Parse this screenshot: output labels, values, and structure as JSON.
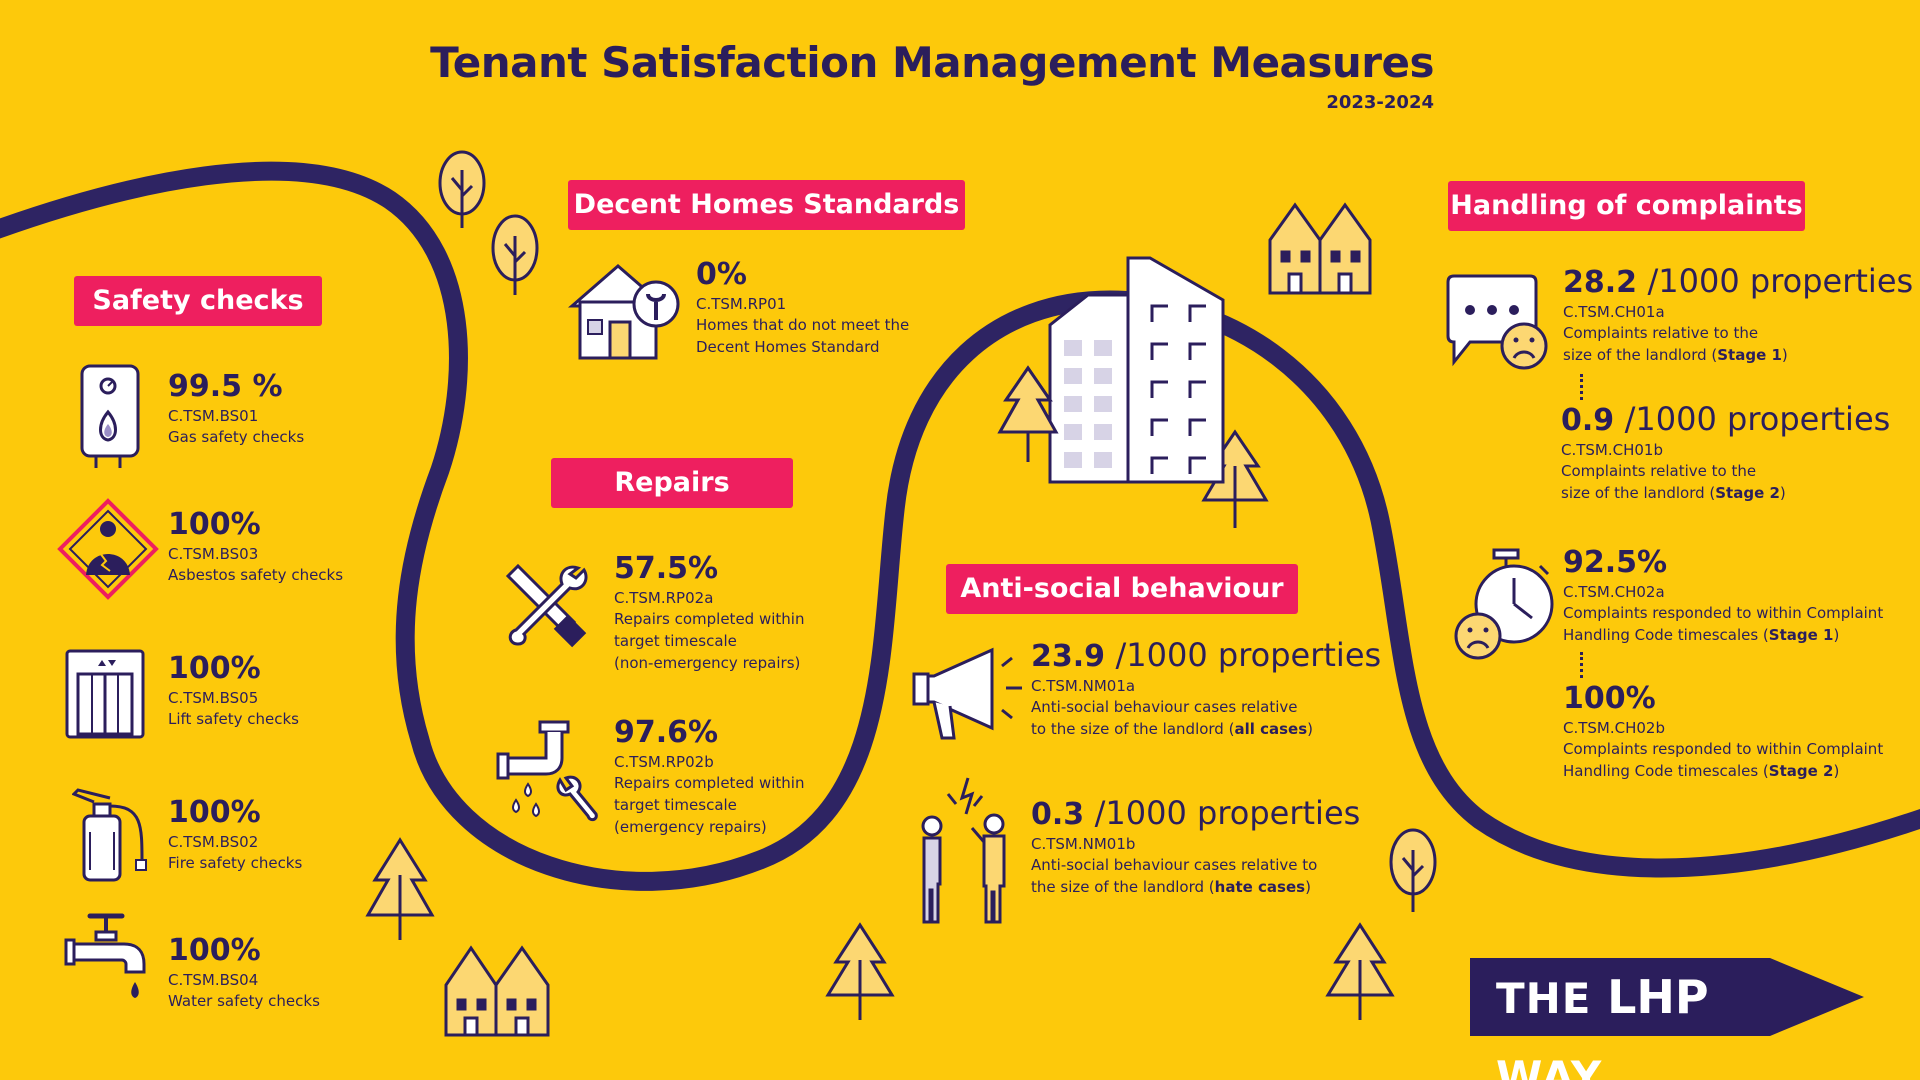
{
  "header": {
    "title": "Tenant Satisfaction Management Measures",
    "year": "2023-2024"
  },
  "colors": {
    "background": "#FDC90B",
    "navy": "#2B1E5C",
    "badge": "#EE1F5F"
  },
  "sections": {
    "safety": {
      "title": "Safety checks",
      "items": [
        {
          "value": "99.5 %",
          "code": "C.TSM.BS01",
          "desc": "Gas safety checks",
          "icon": "boiler-icon"
        },
        {
          "value": "100%",
          "code": "C.TSM.BS03",
          "desc": "Asbestos safety checks",
          "icon": "asbestos-warning-icon"
        },
        {
          "value": "100%",
          "code": "C.TSM.BS05",
          "desc": "Lift safety checks",
          "icon": "lift-icon"
        },
        {
          "value": "100%",
          "code": "C.TSM.BS02",
          "desc": "Fire safety checks",
          "icon": "fire-extinguisher-icon"
        },
        {
          "value": "100%",
          "code": "C.TSM.BS04",
          "desc": "Water safety checks",
          "icon": "water-tap-icon"
        }
      ]
    },
    "decent": {
      "title": "Decent Homes Standards",
      "value": "0%",
      "code": "C.TSM.RP01",
      "desc1": "Homes that do not meet the",
      "desc2": "Decent Homes Standard",
      "icon": "house-repair-icon"
    },
    "repairs": {
      "title": "Repairs",
      "items": [
        {
          "value": "57.5%",
          "code": "C.TSM.RP02a",
          "desc1": "Repairs completed within",
          "desc2": "target timescale",
          "desc3": "(non-emergency repairs)",
          "icon": "tools-icon"
        },
        {
          "value": "97.6%",
          "code": "C.TSM.RP02b",
          "desc1": "Repairs completed within",
          "desc2": "target timescale",
          "desc3": "(emergency repairs)",
          "icon": "leaking-pipe-icon"
        }
      ]
    },
    "asb": {
      "title": "Anti-social behaviour",
      "items": [
        {
          "value": "23.9",
          "unit": "/1000 properties",
          "code": "C.TSM.NM01a",
          "desc1": "Anti-social behaviour cases relative",
          "desc2": "to the size of the landlord (",
          "bold": "all cases",
          "close": ")",
          "icon": "megaphone-icon"
        },
        {
          "value": "0.3",
          "unit": "/1000 properties",
          "code": "C.TSM.NM01b",
          "desc1": "Anti-social behaviour cases relative to",
          "desc2": "the size of the landlord (",
          "bold": "hate cases",
          "close": ")",
          "icon": "argument-people-icon"
        }
      ]
    },
    "complaints": {
      "title": "Handling of complaints",
      "items": [
        {
          "value": "28.2",
          "unit": "/1000 properties",
          "code": "C.TSM.CH01a",
          "desc1": "Complaints relative to the",
          "desc2": "size of the landlord (",
          "bold": "Stage 1",
          "close": ")"
        },
        {
          "value": "0.9",
          "unit": "/1000 properties",
          "code": "C.TSM.CH01b",
          "desc1": "Complaints relative to the",
          "desc2": "size of the landlord (",
          "bold": "Stage 2",
          "close": ")"
        },
        {
          "value": "92.5%",
          "code": "C.TSM.CH02a",
          "desc1": "Complaints responded to within Complaint",
          "desc2": "Handling Code timescales (",
          "bold": "Stage 1",
          "close": ")"
        },
        {
          "value": "100%",
          "code": "C.TSM.CH02b",
          "desc1": "Complaints responded to within Complaint",
          "desc2": "Handling Code timescales (",
          "bold": "Stage 2",
          "close": ")"
        }
      ],
      "icons": [
        "speech-bubble-sad-icon",
        "stopwatch-sad-icon"
      ]
    }
  },
  "logo": {
    "part1": "THE ",
    "part2": "LHP",
    "part3": " WAY"
  }
}
